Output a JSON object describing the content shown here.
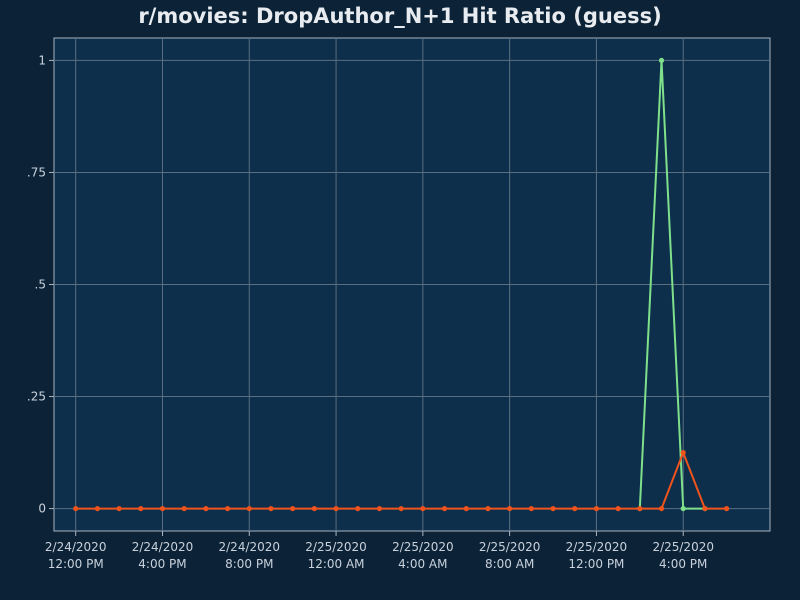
{
  "chart_data": {
    "type": "line",
    "title": "r/movies: DropAuthor_N+1 Hit Ratio (guess)",
    "xlabel": "",
    "ylabel": "",
    "y_ticks": [
      {
        "value": 0,
        "label": "0"
      },
      {
        "value": 0.25,
        "label": ".25"
      },
      {
        "value": 0.5,
        "label": ".5"
      },
      {
        "value": 0.75,
        "label": ".75"
      },
      {
        "value": 1,
        "label": "1"
      }
    ],
    "ylim": [
      -0.05,
      1.05
    ],
    "xlim": [
      "2020-02-24T11:00",
      "2020-02-25T20:00"
    ],
    "x_ticks": [
      {
        "value": "2020-02-24T12:00",
        "date": "2/24/2020",
        "time": "12:00 PM"
      },
      {
        "value": "2020-02-24T16:00",
        "date": "2/24/2020",
        "time": "4:00 PM"
      },
      {
        "value": "2020-02-24T20:00",
        "date": "2/24/2020",
        "time": "8:00 PM"
      },
      {
        "value": "2020-02-25T00:00",
        "date": "2/25/2020",
        "time": "12:00 AM"
      },
      {
        "value": "2020-02-25T04:00",
        "date": "2/25/2020",
        "time": "4:00 AM"
      },
      {
        "value": "2020-02-25T08:00",
        "date": "2/25/2020",
        "time": "8:00 AM"
      },
      {
        "value": "2020-02-25T12:00",
        "date": "2/25/2020",
        "time": "12:00 PM"
      },
      {
        "value": "2020-02-25T16:00",
        "date": "2/25/2020",
        "time": "4:00 PM"
      }
    ],
    "grid": true,
    "legend": "none",
    "series": [
      {
        "color": "#7ee08a",
        "points": [
          {
            "x": "2020-02-25T14:00",
            "y": 0
          },
          {
            "x": "2020-02-25T15:00",
            "y": 1
          },
          {
            "x": "2020-02-25T16:00",
            "y": 0
          },
          {
            "x": "2020-02-25T17:00",
            "y": 0
          }
        ]
      },
      {
        "color": "#f0531c",
        "points": [
          {
            "x": "2020-02-24T12:00",
            "y": 0
          },
          {
            "x": "2020-02-24T13:00",
            "y": 0
          },
          {
            "x": "2020-02-24T14:00",
            "y": 0
          },
          {
            "x": "2020-02-24T15:00",
            "y": 0
          },
          {
            "x": "2020-02-24T16:00",
            "y": 0
          },
          {
            "x": "2020-02-24T17:00",
            "y": 0
          },
          {
            "x": "2020-02-24T18:00",
            "y": 0
          },
          {
            "x": "2020-02-24T19:00",
            "y": 0
          },
          {
            "x": "2020-02-24T20:00",
            "y": 0
          },
          {
            "x": "2020-02-24T21:00",
            "y": 0
          },
          {
            "x": "2020-02-24T22:00",
            "y": 0
          },
          {
            "x": "2020-02-24T23:00",
            "y": 0
          },
          {
            "x": "2020-02-25T00:00",
            "y": 0
          },
          {
            "x": "2020-02-25T01:00",
            "y": 0
          },
          {
            "x": "2020-02-25T02:00",
            "y": 0
          },
          {
            "x": "2020-02-25T03:00",
            "y": 0
          },
          {
            "x": "2020-02-25T04:00",
            "y": 0
          },
          {
            "x": "2020-02-25T05:00",
            "y": 0
          },
          {
            "x": "2020-02-25T06:00",
            "y": 0
          },
          {
            "x": "2020-02-25T07:00",
            "y": 0
          },
          {
            "x": "2020-02-25T08:00",
            "y": 0
          },
          {
            "x": "2020-02-25T09:00",
            "y": 0
          },
          {
            "x": "2020-02-25T10:00",
            "y": 0
          },
          {
            "x": "2020-02-25T11:00",
            "y": 0
          },
          {
            "x": "2020-02-25T12:00",
            "y": 0
          },
          {
            "x": "2020-02-25T13:00",
            "y": 0
          },
          {
            "x": "2020-02-25T14:00",
            "y": 0
          },
          {
            "x": "2020-02-25T15:00",
            "y": 0
          },
          {
            "x": "2020-02-25T16:00",
            "y": 0.125
          },
          {
            "x": "2020-02-25T17:00",
            "y": 0
          },
          {
            "x": "2020-02-25T18:00",
            "y": 0
          }
        ]
      }
    ],
    "colors": {
      "page_background": "#0c2236",
      "plot_background": "#0d2f4b",
      "gridline": "#5b6e80",
      "plot_border": "#a9b6c2",
      "text": "#e8ecf0"
    }
  }
}
